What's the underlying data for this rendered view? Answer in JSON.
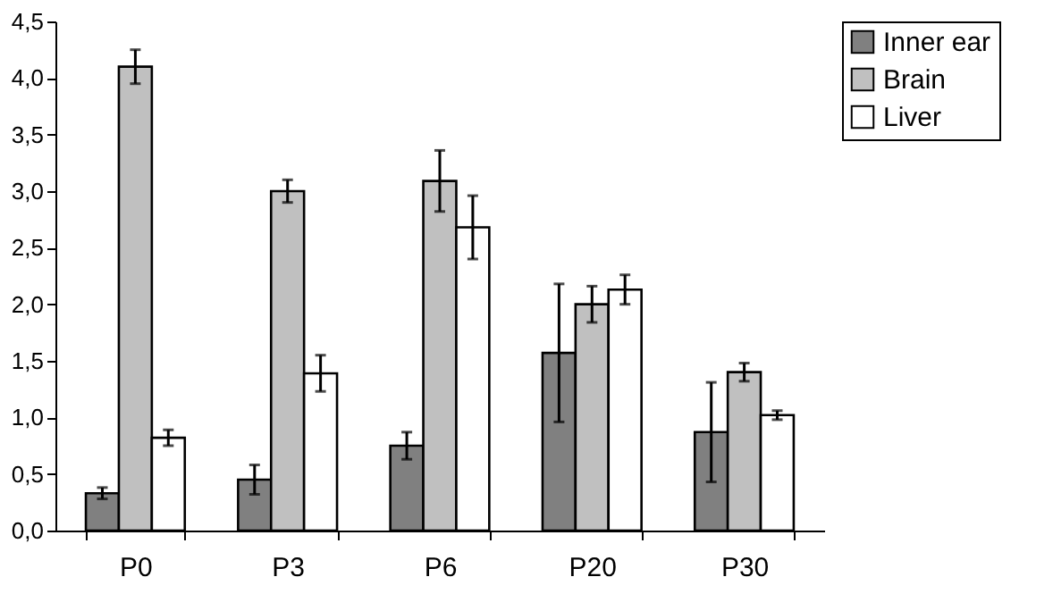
{
  "chart_data": {
    "type": "bar",
    "categories": [
      "P0",
      "P3",
      "P6",
      "P20",
      "P30"
    ],
    "series": [
      {
        "name": "Inner ear",
        "color": "#808080",
        "values": [
          0.33,
          0.45,
          0.75,
          1.57,
          0.87
        ],
        "errors": [
          0.05,
          0.13,
          0.12,
          0.61,
          0.44
        ]
      },
      {
        "name": "Brain",
        "color": "#c0c0c0",
        "values": [
          4.1,
          3.0,
          3.09,
          2.0,
          1.4
        ],
        "errors": [
          0.15,
          0.1,
          0.27,
          0.16,
          0.08
        ]
      },
      {
        "name": "Liver",
        "color": "#ffffff",
        "values": [
          0.82,
          1.39,
          2.68,
          2.13,
          1.02
        ],
        "errors": [
          0.07,
          0.16,
          0.28,
          0.13,
          0.04
        ]
      }
    ],
    "ylim": [
      0,
      4.5
    ],
    "yticks": [
      {
        "value": 0,
        "label": "0,0"
      },
      {
        "value": 0.5,
        "label": "0,5"
      },
      {
        "value": 1,
        "label": "1,0"
      },
      {
        "value": 1.5,
        "label": "1,5"
      },
      {
        "value": 2,
        "label": "2,0"
      },
      {
        "value": 2.5,
        "label": "2,5"
      },
      {
        "value": 3,
        "label": "3,0"
      },
      {
        "value": 3.5,
        "label": "3,5"
      },
      {
        "value": 4,
        "label": "4,0"
      },
      {
        "value": 4.5,
        "label": "4,5"
      }
    ],
    "grid": false,
    "legend": "right"
  }
}
